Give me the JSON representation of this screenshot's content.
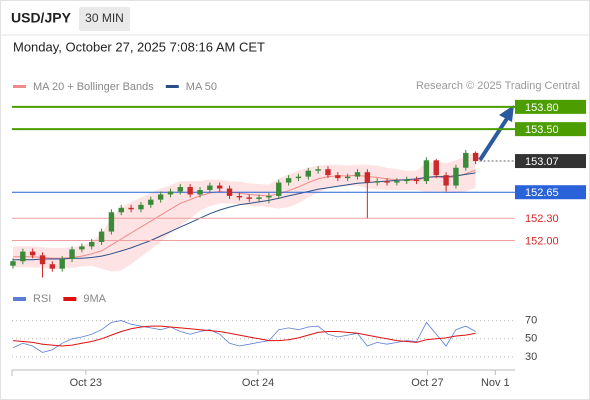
{
  "header": {
    "symbol": "USD/JPY",
    "timeframe": "30 MIN",
    "timestamp": "Monday, October 27, 2025 7:08:16 AM CET"
  },
  "chart_data": {
    "type": "candlestick",
    "legend": [
      {
        "name": "MA 20 + Bollinger Bands",
        "color": "#f08a8a"
      },
      {
        "name": "MA 50",
        "color": "#2c4f8c"
      }
    ],
    "source": "Research © 2025 Trading Central",
    "up_color": "#3a8a3a",
    "down_color": "#cc2a2a",
    "band_color": "#fde3e3",
    "xlim": [
      -0.1,
      51
    ],
    "xticks": [
      {
        "value": 7.4,
        "label": "Oct 23"
      },
      {
        "value": 24.9,
        "label": "Oct 24"
      },
      {
        "value": 42.1,
        "label": "Oct 27"
      },
      {
        "value": 49,
        "label": "Nov 1"
      }
    ],
    "ylim": [
      151.4,
      153.96
    ],
    "candles": [
      {
        "o": 151.66,
        "h": 151.76,
        "l": 151.62,
        "c": 151.72
      },
      {
        "o": 151.72,
        "h": 151.89,
        "l": 151.68,
        "c": 151.85
      },
      {
        "o": 151.85,
        "h": 151.89,
        "l": 151.76,
        "c": 151.8
      },
      {
        "o": 151.8,
        "h": 151.84,
        "l": 151.5,
        "c": 151.68
      },
      {
        "o": 151.68,
        "h": 151.72,
        "l": 151.58,
        "c": 151.62
      },
      {
        "o": 151.62,
        "h": 151.79,
        "l": 151.58,
        "c": 151.75
      },
      {
        "o": 151.75,
        "h": 151.92,
        "l": 151.71,
        "c": 151.88
      },
      {
        "o": 151.88,
        "h": 151.96,
        "l": 151.84,
        "c": 151.92
      },
      {
        "o": 151.92,
        "h": 152.02,
        "l": 151.88,
        "c": 151.98
      },
      {
        "o": 151.98,
        "h": 152.16,
        "l": 151.94,
        "c": 152.12
      },
      {
        "o": 152.12,
        "h": 152.42,
        "l": 152.08,
        "c": 152.38
      },
      {
        "o": 152.38,
        "h": 152.48,
        "l": 152.34,
        "c": 152.44
      },
      {
        "o": 152.44,
        "h": 152.48,
        "l": 152.38,
        "c": 152.42
      },
      {
        "o": 152.42,
        "h": 152.52,
        "l": 152.38,
        "c": 152.48
      },
      {
        "o": 152.48,
        "h": 152.59,
        "l": 152.44,
        "c": 152.55
      },
      {
        "o": 152.55,
        "h": 152.66,
        "l": 152.51,
        "c": 152.62
      },
      {
        "o": 152.62,
        "h": 152.7,
        "l": 152.58,
        "c": 152.66
      },
      {
        "o": 152.66,
        "h": 152.76,
        "l": 152.62,
        "c": 152.72
      },
      {
        "o": 152.72,
        "h": 152.76,
        "l": 152.58,
        "c": 152.62
      },
      {
        "o": 152.62,
        "h": 152.72,
        "l": 152.58,
        "c": 152.68
      },
      {
        "o": 152.68,
        "h": 152.78,
        "l": 152.64,
        "c": 152.74
      },
      {
        "o": 152.74,
        "h": 152.78,
        "l": 152.66,
        "c": 152.7
      },
      {
        "o": 152.7,
        "h": 152.74,
        "l": 152.56,
        "c": 152.6
      },
      {
        "o": 152.6,
        "h": 152.64,
        "l": 152.54,
        "c": 152.58
      },
      {
        "o": 152.58,
        "h": 152.62,
        "l": 152.52,
        "c": 152.56
      },
      {
        "o": 152.56,
        "h": 152.62,
        "l": 152.52,
        "c": 152.58
      },
      {
        "o": 152.58,
        "h": 152.64,
        "l": 152.5,
        "c": 152.6
      },
      {
        "o": 152.6,
        "h": 152.82,
        "l": 152.56,
        "c": 152.78
      },
      {
        "o": 152.78,
        "h": 152.88,
        "l": 152.74,
        "c": 152.84
      },
      {
        "o": 152.84,
        "h": 152.9,
        "l": 152.8,
        "c": 152.86
      },
      {
        "o": 152.86,
        "h": 152.98,
        "l": 152.82,
        "c": 152.94
      },
      {
        "o": 152.94,
        "h": 153.0,
        "l": 152.9,
        "c": 152.96
      },
      {
        "o": 152.96,
        "h": 153.0,
        "l": 152.84,
        "c": 152.88
      },
      {
        "o": 152.88,
        "h": 152.92,
        "l": 152.8,
        "c": 152.84
      },
      {
        "o": 152.84,
        "h": 152.9,
        "l": 152.8,
        "c": 152.86
      },
      {
        "o": 152.86,
        "h": 152.96,
        "l": 152.82,
        "c": 152.92
      },
      {
        "o": 152.92,
        "h": 152.96,
        "l": 152.3,
        "c": 152.78
      },
      {
        "o": 152.78,
        "h": 152.84,
        "l": 152.74,
        "c": 152.8
      },
      {
        "o": 152.8,
        "h": 152.84,
        "l": 152.74,
        "c": 152.78
      },
      {
        "o": 152.78,
        "h": 152.84,
        "l": 152.74,
        "c": 152.8
      },
      {
        "o": 152.8,
        "h": 152.86,
        "l": 152.76,
        "c": 152.82
      },
      {
        "o": 152.82,
        "h": 152.86,
        "l": 152.76,
        "c": 152.8
      },
      {
        "o": 152.8,
        "h": 153.12,
        "l": 152.76,
        "c": 153.08
      },
      {
        "o": 153.08,
        "h": 153.1,
        "l": 152.84,
        "c": 152.88
      },
      {
        "o": 152.88,
        "h": 152.92,
        "l": 152.66,
        "c": 152.74
      },
      {
        "o": 152.74,
        "h": 153.02,
        "l": 152.7,
        "c": 152.98
      },
      {
        "o": 152.98,
        "h": 153.22,
        "l": 152.94,
        "c": 153.18
      },
      {
        "o": 153.18,
        "h": 153.2,
        "l": 153.03,
        "c": 153.07
      }
    ],
    "ma20": [
      151.78,
      151.78,
      151.78,
      151.77,
      151.76,
      151.76,
      151.77,
      151.79,
      151.82,
      151.86,
      151.94,
      152.02,
      152.1,
      152.18,
      152.26,
      152.34,
      152.42,
      152.5,
      152.55,
      152.6,
      152.64,
      152.66,
      152.65,
      152.64,
      152.62,
      152.61,
      152.6,
      152.63,
      152.67,
      152.72,
      152.78,
      152.83,
      152.86,
      152.87,
      152.87,
      152.88,
      152.86,
      152.85,
      152.83,
      152.82,
      152.81,
      152.81,
      152.85,
      152.86,
      152.84,
      152.86,
      152.9,
      152.95
    ],
    "bb_upper": [
      151.92,
      151.92,
      151.92,
      151.91,
      151.9,
      151.9,
      151.91,
      151.93,
      151.98,
      152.1,
      152.3,
      152.44,
      152.52,
      152.58,
      152.64,
      152.7,
      152.74,
      152.8,
      152.8,
      152.8,
      152.82,
      152.82,
      152.8,
      152.79,
      152.77,
      152.76,
      152.75,
      152.83,
      152.89,
      152.94,
      152.98,
      153.01,
      153.02,
      153.02,
      153.01,
      153.02,
      153.02,
      153.01,
      152.98,
      152.96,
      152.94,
      152.94,
      153.05,
      153.06,
      153.04,
      153.08,
      153.14,
      153.19
    ],
    "bb_lower": [
      151.64,
      151.64,
      151.64,
      151.63,
      151.62,
      151.62,
      151.63,
      151.65,
      151.66,
      151.62,
      151.58,
      151.6,
      151.68,
      151.78,
      151.88,
      151.98,
      152.1,
      152.2,
      152.3,
      152.4,
      152.46,
      152.5,
      152.5,
      152.49,
      152.47,
      152.46,
      152.45,
      152.43,
      152.45,
      152.5,
      152.58,
      152.65,
      152.7,
      152.72,
      152.73,
      152.74,
      152.7,
      152.69,
      152.68,
      152.68,
      152.68,
      152.68,
      152.65,
      152.66,
      152.64,
      152.64,
      152.66,
      152.71
    ],
    "ma50": [
      151.74,
      151.74,
      151.74,
      151.75,
      151.75,
      151.75,
      151.76,
      151.76,
      151.77,
      151.79,
      151.82,
      151.86,
      151.9,
      151.95,
      152.0,
      152.06,
      152.12,
      152.18,
      152.24,
      152.3,
      152.36,
      152.41,
      152.45,
      152.48,
      152.5,
      152.52,
      152.54,
      152.57,
      152.6,
      152.63,
      152.66,
      152.69,
      152.71,
      152.73,
      152.75,
      152.77,
      152.78,
      152.79,
      152.8,
      152.81,
      152.82,
      152.83,
      152.85,
      152.86,
      152.86,
      152.87,
      152.89,
      152.91
    ],
    "levels": [
      {
        "value": 153.8,
        "label": "153.80",
        "color": "#4c9e00",
        "style": "box",
        "line": "solid"
      },
      {
        "value": 153.5,
        "label": "153.50",
        "color": "#4c9e00",
        "style": "box",
        "line": "solid"
      },
      {
        "value": 153.07,
        "label": "153.07",
        "color": "#333333",
        "style": "box",
        "line": "dotted"
      },
      {
        "value": 152.65,
        "label": "152.65",
        "color": "#2962d9",
        "style": "box",
        "line": "solid"
      },
      {
        "value": 152.3,
        "label": "152.30",
        "color": "#d62828",
        "style": "text",
        "line": "thin"
      },
      {
        "value": 152.0,
        "label": "152.00",
        "color": "#d62828",
        "style": "text",
        "line": "thin"
      }
    ],
    "rsi": {
      "legend": [
        {
          "name": "RSI",
          "color": "#5b7fd6"
        },
        {
          "name": "9MA",
          "color": "#e01010"
        }
      ],
      "ylim": [
        20,
        85
      ],
      "yticks": [
        30,
        50,
        70
      ],
      "values": [
        40,
        45,
        42,
        35,
        38,
        45,
        50,
        52,
        55,
        60,
        68,
        70,
        66,
        64,
        62,
        60,
        63,
        58,
        55,
        58,
        60,
        55,
        45,
        42,
        44,
        46,
        48,
        60,
        62,
        60,
        63,
        64,
        55,
        52,
        54,
        56,
        42,
        46,
        44,
        46,
        48,
        47,
        68,
        55,
        42,
        60,
        64,
        58
      ],
      "ma": [
        48,
        47,
        46,
        44,
        43,
        42,
        43,
        45,
        47,
        50,
        54,
        58,
        61,
        63,
        64,
        64,
        63,
        62,
        61,
        60,
        59,
        58,
        56,
        54,
        52,
        50,
        48,
        48,
        49,
        51,
        54,
        57,
        58,
        58,
        57,
        56,
        54,
        52,
        50,
        48,
        47,
        46,
        49,
        50,
        51,
        53,
        54,
        56
      ]
    }
  }
}
